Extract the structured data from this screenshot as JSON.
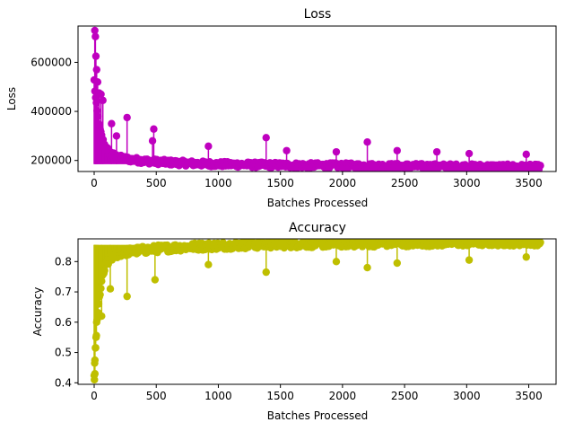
{
  "chart_data": [
    {
      "type": "scatter",
      "title": "Loss",
      "xlabel": "Batches Processed",
      "ylabel": "Loss",
      "xlim": [
        -130,
        3720
      ],
      "ylim": [
        155000,
        748000
      ],
      "xticks": [
        0,
        500,
        1000,
        1500,
        2000,
        2500,
        3000,
        3500
      ],
      "yticks": [
        200000,
        400000,
        600000
      ],
      "xtick_labels": [
        "0",
        "500",
        "1000",
        "1500",
        "2000",
        "2500",
        "3000",
        "3500"
      ],
      "ytick_labels": [
        "200000",
        "400000",
        "600000"
      ],
      "grid": false,
      "color": "#bf00bf",
      "style": "stem with circular markers",
      "n_points": 3600,
      "initial_value": 730000,
      "final_value": 185000,
      "spikes": [
        {
          "x": 5,
          "y": 730000
        },
        {
          "x": 10,
          "y": 705000
        },
        {
          "x": 14,
          "y": 625000
        },
        {
          "x": 20,
          "y": 570000
        },
        {
          "x": 28,
          "y": 520000
        },
        {
          "x": 40,
          "y": 475000
        },
        {
          "x": 55,
          "y": 470000
        },
        {
          "x": 70,
          "y": 445000
        },
        {
          "x": 140,
          "y": 350000
        },
        {
          "x": 180,
          "y": 300000
        },
        {
          "x": 265,
          "y": 375000
        },
        {
          "x": 480,
          "y": 328000
        },
        {
          "x": 470,
          "y": 280000
        },
        {
          "x": 920,
          "y": 258000
        },
        {
          "x": 1385,
          "y": 293000
        },
        {
          "x": 1550,
          "y": 240000
        },
        {
          "x": 1950,
          "y": 235000
        },
        {
          "x": 2200,
          "y": 275000
        },
        {
          "x": 2440,
          "y": 240000
        },
        {
          "x": 2760,
          "y": 235000
        },
        {
          "x": 3020,
          "y": 228000
        },
        {
          "x": 3480,
          "y": 225000
        }
      ]
    },
    {
      "type": "scatter",
      "title": "Accuracy",
      "xlabel": "Batches Processed",
      "ylabel": "Accuracy",
      "xlim": [
        -130,
        3720
      ],
      "ylim": [
        0.395,
        0.875
      ],
      "xticks": [
        0,
        500,
        1000,
        1500,
        2000,
        2500,
        3000,
        3500
      ],
      "yticks": [
        0.4,
        0.5,
        0.6,
        0.7,
        0.8
      ],
      "xtick_labels": [
        "0",
        "500",
        "1000",
        "1500",
        "2000",
        "2500",
        "3000",
        "3500"
      ],
      "ytick_labels": [
        "0.4",
        "0.5",
        "0.6",
        "0.7",
        "0.8"
      ],
      "grid": false,
      "color": "#bfbf00",
      "style": "stem with circular markers",
      "n_points": 3600,
      "initial_value": 0.41,
      "final_value": 0.855,
      "dips": [
        {
          "x": 2,
          "y": 0.41
        },
        {
          "x": 6,
          "y": 0.43
        },
        {
          "x": 4,
          "y": 0.465
        },
        {
          "x": 10,
          "y": 0.515
        },
        {
          "x": 15,
          "y": 0.55
        },
        {
          "x": 20,
          "y": 0.6
        },
        {
          "x": 30,
          "y": 0.62
        },
        {
          "x": 60,
          "y": 0.62
        },
        {
          "x": 130,
          "y": 0.71
        },
        {
          "x": 265,
          "y": 0.685
        },
        {
          "x": 490,
          "y": 0.74
        },
        {
          "x": 920,
          "y": 0.79
        },
        {
          "x": 1385,
          "y": 0.765
        },
        {
          "x": 1950,
          "y": 0.8
        },
        {
          "x": 2200,
          "y": 0.78
        },
        {
          "x": 2440,
          "y": 0.795
        },
        {
          "x": 3020,
          "y": 0.805
        },
        {
          "x": 3480,
          "y": 0.815
        }
      ]
    }
  ]
}
